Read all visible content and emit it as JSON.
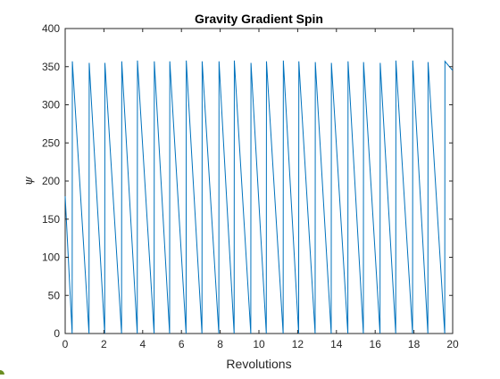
{
  "chart_data": {
    "type": "line",
    "title": "Gravity Gradient Spin",
    "xlabel": "Revolutions",
    "ylabel": "ψ",
    "xlim": [
      0,
      20
    ],
    "ylim": [
      0,
      400
    ],
    "xticks": [
      0,
      2,
      4,
      6,
      8,
      10,
      12,
      14,
      16,
      18,
      20
    ],
    "yticks": [
      0,
      50,
      100,
      150,
      200,
      250,
      300,
      350,
      400
    ],
    "grid": false,
    "legend": "none",
    "line_color": "#0072BD",
    "series": [
      {
        "x": [
          0,
          0.36,
          0.37,
          1.23,
          1.24,
          2.04,
          2.05,
          2.91,
          2.92,
          3.72,
          3.73,
          4.59,
          4.6,
          5.39,
          5.4,
          6.24,
          6.25,
          7.06,
          7.07,
          7.93,
          7.94,
          8.72,
          8.73,
          9.58,
          9.59,
          10.38,
          10.39,
          11.25,
          11.26,
          12.05,
          12.06,
          12.9,
          12.91,
          13.73,
          13.74,
          14.59,
          14.6,
          15.39,
          15.4,
          16.25,
          16.26,
          17.06,
          17.07,
          17.93,
          17.94,
          18.72,
          18.73,
          19.59,
          19.6,
          20.0
        ],
        "y": [
          180,
          0,
          357,
          0,
          355,
          0,
          355,
          0,
          357,
          0,
          358,
          0,
          357,
          0,
          357,
          0,
          358,
          0,
          357,
          0,
          357,
          0,
          358,
          0,
          355,
          0,
          357,
          0,
          358,
          0,
          357,
          0,
          356,
          0,
          355,
          0,
          357,
          0,
          356,
          0,
          355,
          0,
          358,
          0,
          358,
          0,
          356,
          0,
          357,
          345
        ]
      }
    ]
  }
}
